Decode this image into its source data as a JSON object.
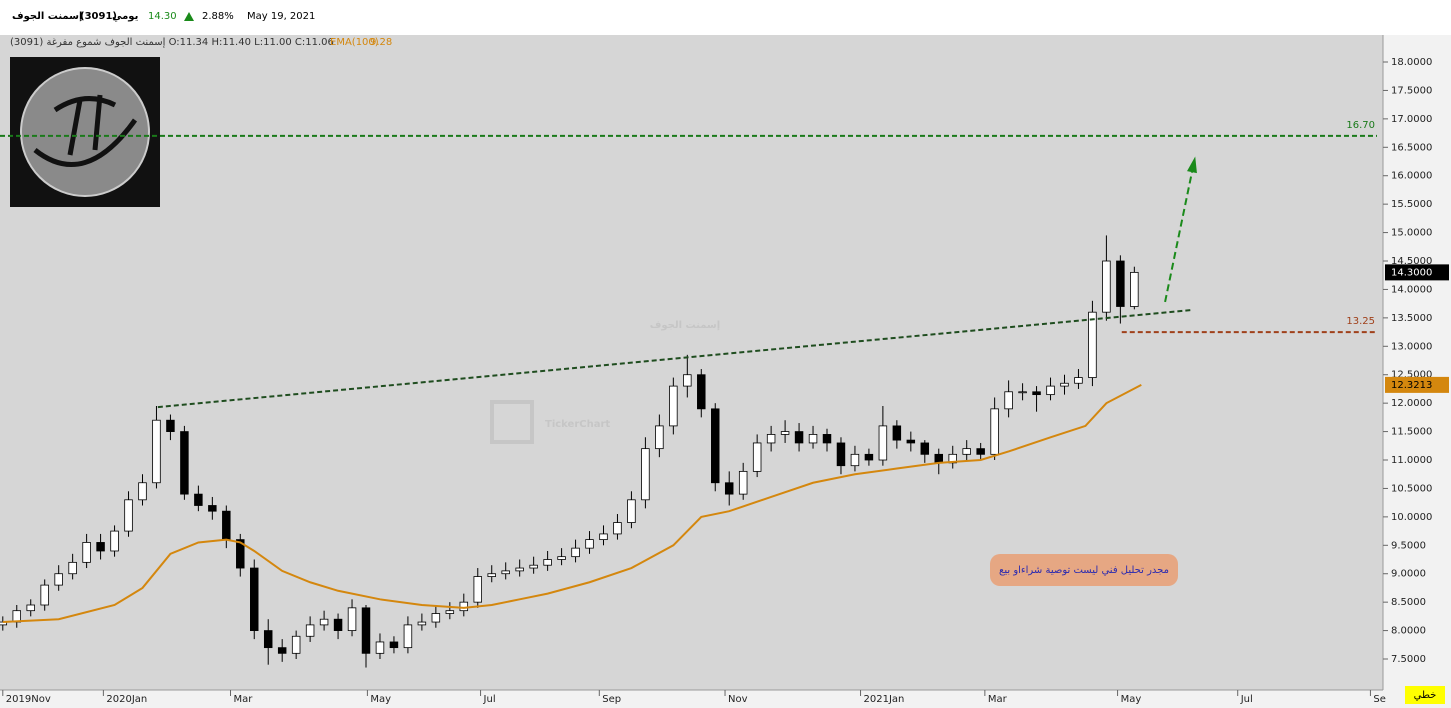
{
  "header": {
    "name": "إسمنت الجوف",
    "code": "(3091)",
    "period": "يومي",
    "price": "14.30",
    "change": "2.88%",
    "date": "May 19, 2021",
    "ohlc_line": "(3091) إسمنت الجوف شموع مفرغة O:11.34 H:11.40 L:11.00 C:11.06",
    "ema_value": "9.28"
  },
  "watermark": {
    "name": "إسمنت الجوف",
    "brand": "TickerChart"
  },
  "chart_type_label": "خطي",
  "chart_data": {
    "type": "candlestick",
    "xlim": [
      -0.2,
      98.8
    ],
    "xticks": [
      {
        "value": 0,
        "label": "2019Nov"
      },
      {
        "value": 7.2,
        "label": "2020Jan"
      },
      {
        "value": 16.3,
        "label": "Mar"
      },
      {
        "value": 26.1,
        "label": "May"
      },
      {
        "value": 34.2,
        "label": "Jul"
      },
      {
        "value": 42.7,
        "label": "Sep"
      },
      {
        "value": 51.7,
        "label": "Nov"
      },
      {
        "value": 61.4,
        "label": "2021Jan"
      },
      {
        "value": 70.3,
        "label": "Mar"
      },
      {
        "value": 79.8,
        "label": "May"
      },
      {
        "value": 88.4,
        "label": "Jul"
      },
      {
        "value": 97.9,
        "label": "Se"
      }
    ],
    "ylim": [
      6.955,
      18.475
    ],
    "yticks": [
      {
        "value": 7.5,
        "label": "7.5000"
      },
      {
        "value": 8,
        "label": "8.0000"
      },
      {
        "value": 8.5,
        "label": "8.5000"
      },
      {
        "value": 9,
        "label": "9.0000"
      },
      {
        "value": 9.5,
        "label": "9.5000"
      },
      {
        "value": 10,
        "label": "10.0000"
      },
      {
        "value": 10.5,
        "label": "10.5000"
      },
      {
        "value": 11,
        "label": "11.0000"
      },
      {
        "value": 11.5,
        "label": "11.5000"
      },
      {
        "value": 12,
        "label": "12.0000"
      },
      {
        "value": 12.5,
        "label": "12.5000"
      },
      {
        "value": 13,
        "label": "13.0000"
      },
      {
        "value": 13.5,
        "label": "13.5000"
      },
      {
        "value": 14,
        "label": "14.0000"
      },
      {
        "value": 14.5,
        "label": "14.5000"
      },
      {
        "value": 15,
        "label": "15.0000"
      },
      {
        "value": 15.5,
        "label": "15.5000"
      },
      {
        "value": 16,
        "label": "16.0000"
      },
      {
        "value": 16.5,
        "label": "16.5000"
      },
      {
        "value": 17,
        "label": "17.0000"
      },
      {
        "value": 17.5,
        "label": "17.5000"
      },
      {
        "value": 18,
        "label": "18.0000"
      }
    ],
    "grid": false,
    "candles": {
      "up_color": "#ffffff",
      "down_color": "#000000",
      "last_label": "14.3000",
      "x": [
        0,
        1,
        2,
        3,
        4,
        5,
        6,
        7,
        8,
        9,
        10,
        11,
        12,
        13,
        14,
        15,
        16,
        17,
        18,
        19,
        20,
        21,
        22,
        23,
        24,
        25,
        26,
        27,
        28,
        29,
        30,
        31,
        32,
        33,
        34,
        35,
        36,
        37,
        38,
        39,
        40,
        41,
        42,
        43,
        44,
        45,
        46,
        47,
        48,
        49,
        50,
        51,
        52,
        53,
        54,
        55,
        56,
        57,
        58,
        59,
        60,
        61,
        62,
        63,
        64,
        65,
        66,
        67,
        68,
        69,
        70,
        71,
        72,
        73,
        74,
        75,
        76,
        77,
        78,
        79,
        80,
        81
      ],
      "open": [
        8.1,
        8.15,
        8.35,
        8.45,
        8.8,
        9.0,
        9.2,
        9.55,
        9.4,
        9.75,
        10.3,
        10.6,
        11.7,
        11.5,
        10.4,
        10.2,
        10.1,
        9.6,
        9.1,
        8.0,
        7.7,
        7.6,
        7.9,
        8.1,
        8.2,
        8.0,
        8.4,
        7.6,
        7.8,
        7.7,
        8.1,
        8.15,
        8.3,
        8.35,
        8.5,
        8.95,
        9.0,
        9.05,
        9.1,
        9.15,
        9.25,
        9.3,
        9.45,
        9.6,
        9.7,
        9.9,
        10.3,
        11.2,
        11.6,
        12.3,
        12.5,
        11.9,
        10.6,
        10.4,
        10.8,
        11.3,
        11.45,
        11.5,
        11.3,
        11.45,
        11.3,
        10.9,
        11.1,
        11.0,
        11.6,
        11.35,
        11.3,
        11.1,
        10.95,
        11.1,
        11.2,
        11.1,
        11.9,
        12.2,
        12.2,
        12.15,
        12.3,
        12.35,
        12.45,
        13.6,
        14.5,
        13.7
      ],
      "high": [
        8.25,
        8.45,
        8.55,
        8.9,
        9.15,
        9.35,
        9.7,
        9.7,
        9.85,
        10.45,
        10.75,
        11.95,
        11.8,
        11.6,
        10.55,
        10.35,
        10.2,
        9.7,
        9.25,
        8.2,
        7.85,
        8.0,
        8.25,
        8.35,
        8.3,
        8.55,
        8.45,
        7.95,
        7.9,
        8.25,
        8.3,
        8.45,
        8.5,
        8.65,
        9.1,
        9.15,
        9.2,
        9.25,
        9.3,
        9.4,
        9.45,
        9.6,
        9.75,
        9.85,
        10.05,
        10.45,
        11.4,
        11.8,
        12.45,
        12.85,
        12.6,
        12.0,
        10.8,
        10.95,
        11.45,
        11.6,
        11.7,
        11.65,
        11.6,
        11.55,
        11.4,
        11.25,
        11.2,
        11.95,
        11.7,
        11.5,
        11.35,
        11.2,
        11.25,
        11.35,
        11.3,
        12.1,
        12.4,
        12.35,
        12.3,
        12.45,
        12.5,
        12.6,
        13.8,
        14.95,
        14.6,
        14.4
      ],
      "low": [
        8.0,
        8.05,
        8.25,
        8.35,
        8.7,
        8.9,
        9.1,
        9.25,
        9.3,
        9.65,
        10.2,
        10.5,
        11.35,
        10.3,
        10.1,
        9.95,
        9.45,
        8.95,
        7.85,
        7.4,
        7.45,
        7.5,
        7.8,
        8.0,
        7.85,
        7.9,
        7.35,
        7.5,
        7.6,
        7.6,
        8.0,
        8.05,
        8.2,
        8.25,
        8.4,
        8.85,
        8.9,
        8.95,
        9.0,
        9.05,
        9.15,
        9.2,
        9.35,
        9.5,
        9.6,
        9.8,
        10.15,
        11.05,
        11.45,
        12.1,
        11.75,
        10.45,
        10.2,
        10.3,
        10.7,
        11.15,
        11.3,
        11.15,
        11.2,
        11.15,
        10.75,
        10.8,
        10.9,
        10.9,
        11.2,
        11.15,
        10.95,
        10.75,
        10.85,
        11.0,
        11.0,
        11.0,
        11.75,
        12.05,
        11.85,
        12.05,
        12.15,
        12.25,
        12.3,
        13.45,
        13.4,
        13.65
      ],
      "close": [
        8.15,
        8.35,
        8.45,
        8.8,
        9.0,
        9.2,
        9.55,
        9.4,
        9.75,
        10.3,
        10.6,
        11.7,
        11.5,
        10.4,
        10.2,
        10.1,
        9.6,
        9.1,
        8.0,
        7.7,
        7.6,
        7.9,
        8.1,
        8.2,
        8.0,
        8.4,
        7.6,
        7.8,
        7.7,
        8.1,
        8.15,
        8.3,
        8.35,
        8.5,
        8.95,
        9.0,
        9.05,
        9.1,
        9.15,
        9.25,
        9.3,
        9.45,
        9.6,
        9.7,
        9.9,
        10.3,
        11.2,
        11.6,
        12.3,
        12.5,
        11.9,
        10.6,
        10.4,
        10.8,
        11.3,
        11.45,
        11.5,
        11.3,
        11.45,
        11.3,
        10.9,
        11.1,
        11.0,
        11.6,
        11.35,
        11.3,
        11.1,
        10.95,
        11.1,
        11.2,
        11.1,
        11.9,
        12.2,
        12.2,
        12.15,
        12.3,
        12.35,
        12.45,
        13.6,
        14.5,
        13.7,
        14.3
      ]
    },
    "series": [
      {
        "name": "EMA(100)",
        "color": "#d4870e",
        "last_label": "12.3213",
        "x": [
          0,
          4,
          8,
          10,
          12,
          14,
          16,
          17,
          18,
          20,
          22,
          24,
          27,
          30,
          33,
          35,
          37,
          39,
          42,
          45,
          48,
          50,
          52,
          55,
          58,
          61,
          64,
          67,
          70,
          72,
          75,
          77.5,
          79,
          81.5
        ],
        "values": [
          8.15,
          8.2,
          8.45,
          8.75,
          9.35,
          9.55,
          9.6,
          9.55,
          9.4,
          9.05,
          8.85,
          8.7,
          8.55,
          8.45,
          8.4,
          8.45,
          8.55,
          8.65,
          8.85,
          9.1,
          9.5,
          10.0,
          10.1,
          10.35,
          10.6,
          10.75,
          10.85,
          10.95,
          11.0,
          11.15,
          11.4,
          11.6,
          12.0,
          12.3213
        ]
      }
    ],
    "trendline": {
      "color": "#1f4d1f",
      "x": [
        11.1,
        85.2
      ],
      "values": [
        11.93,
        13.64
      ]
    },
    "arrow": {
      "color": "#1a8a1a",
      "x": [
        83.2,
        85.3
      ],
      "values": [
        13.78,
        16.27
      ]
    },
    "levels": [
      {
        "value": 16.7,
        "label": "16.70",
        "color": "#1a7a1a"
      },
      {
        "value": 13.25,
        "label": "13.25",
        "color": "#a0401a",
        "from": 80.1
      }
    ],
    "note": "مجدر تحليل فني ليست توصية شراءاو بيع"
  }
}
